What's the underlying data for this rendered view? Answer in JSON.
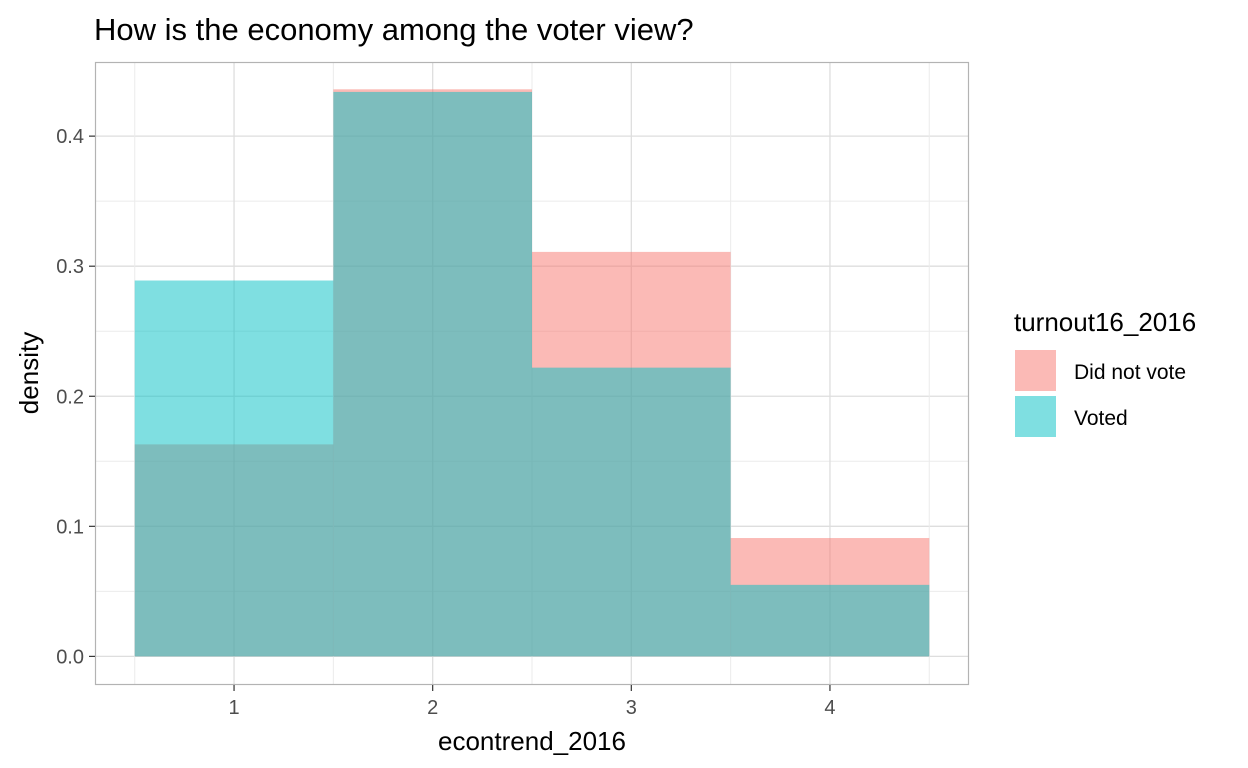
{
  "chart_data": {
    "type": "bar",
    "title": "How is the economy among the voter view?",
    "xlabel": "econtrend_2016",
    "ylabel": "density",
    "categories": [
      1,
      2,
      3,
      4
    ],
    "x_ticks": [
      "1",
      "2",
      "3",
      "4"
    ],
    "y_ticks": [
      "0.0",
      "0.1",
      "0.2",
      "0.3",
      "0.4"
    ],
    "xlim": [
      0.3,
      4.7
    ],
    "ylim": [
      -0.022,
      0.457
    ],
    "grid": true,
    "legend_position": "right",
    "legend_title": "turnout16_2016",
    "bar_opacity": 0.5,
    "series": [
      {
        "name": "Did not vote",
        "color": "#F8766D",
        "values": [
          0.163,
          0.436,
          0.311,
          0.091
        ]
      },
      {
        "name": "Voted",
        "color": "#00BFC4",
        "values": [
          0.289,
          0.434,
          0.222,
          0.055
        ]
      }
    ]
  }
}
